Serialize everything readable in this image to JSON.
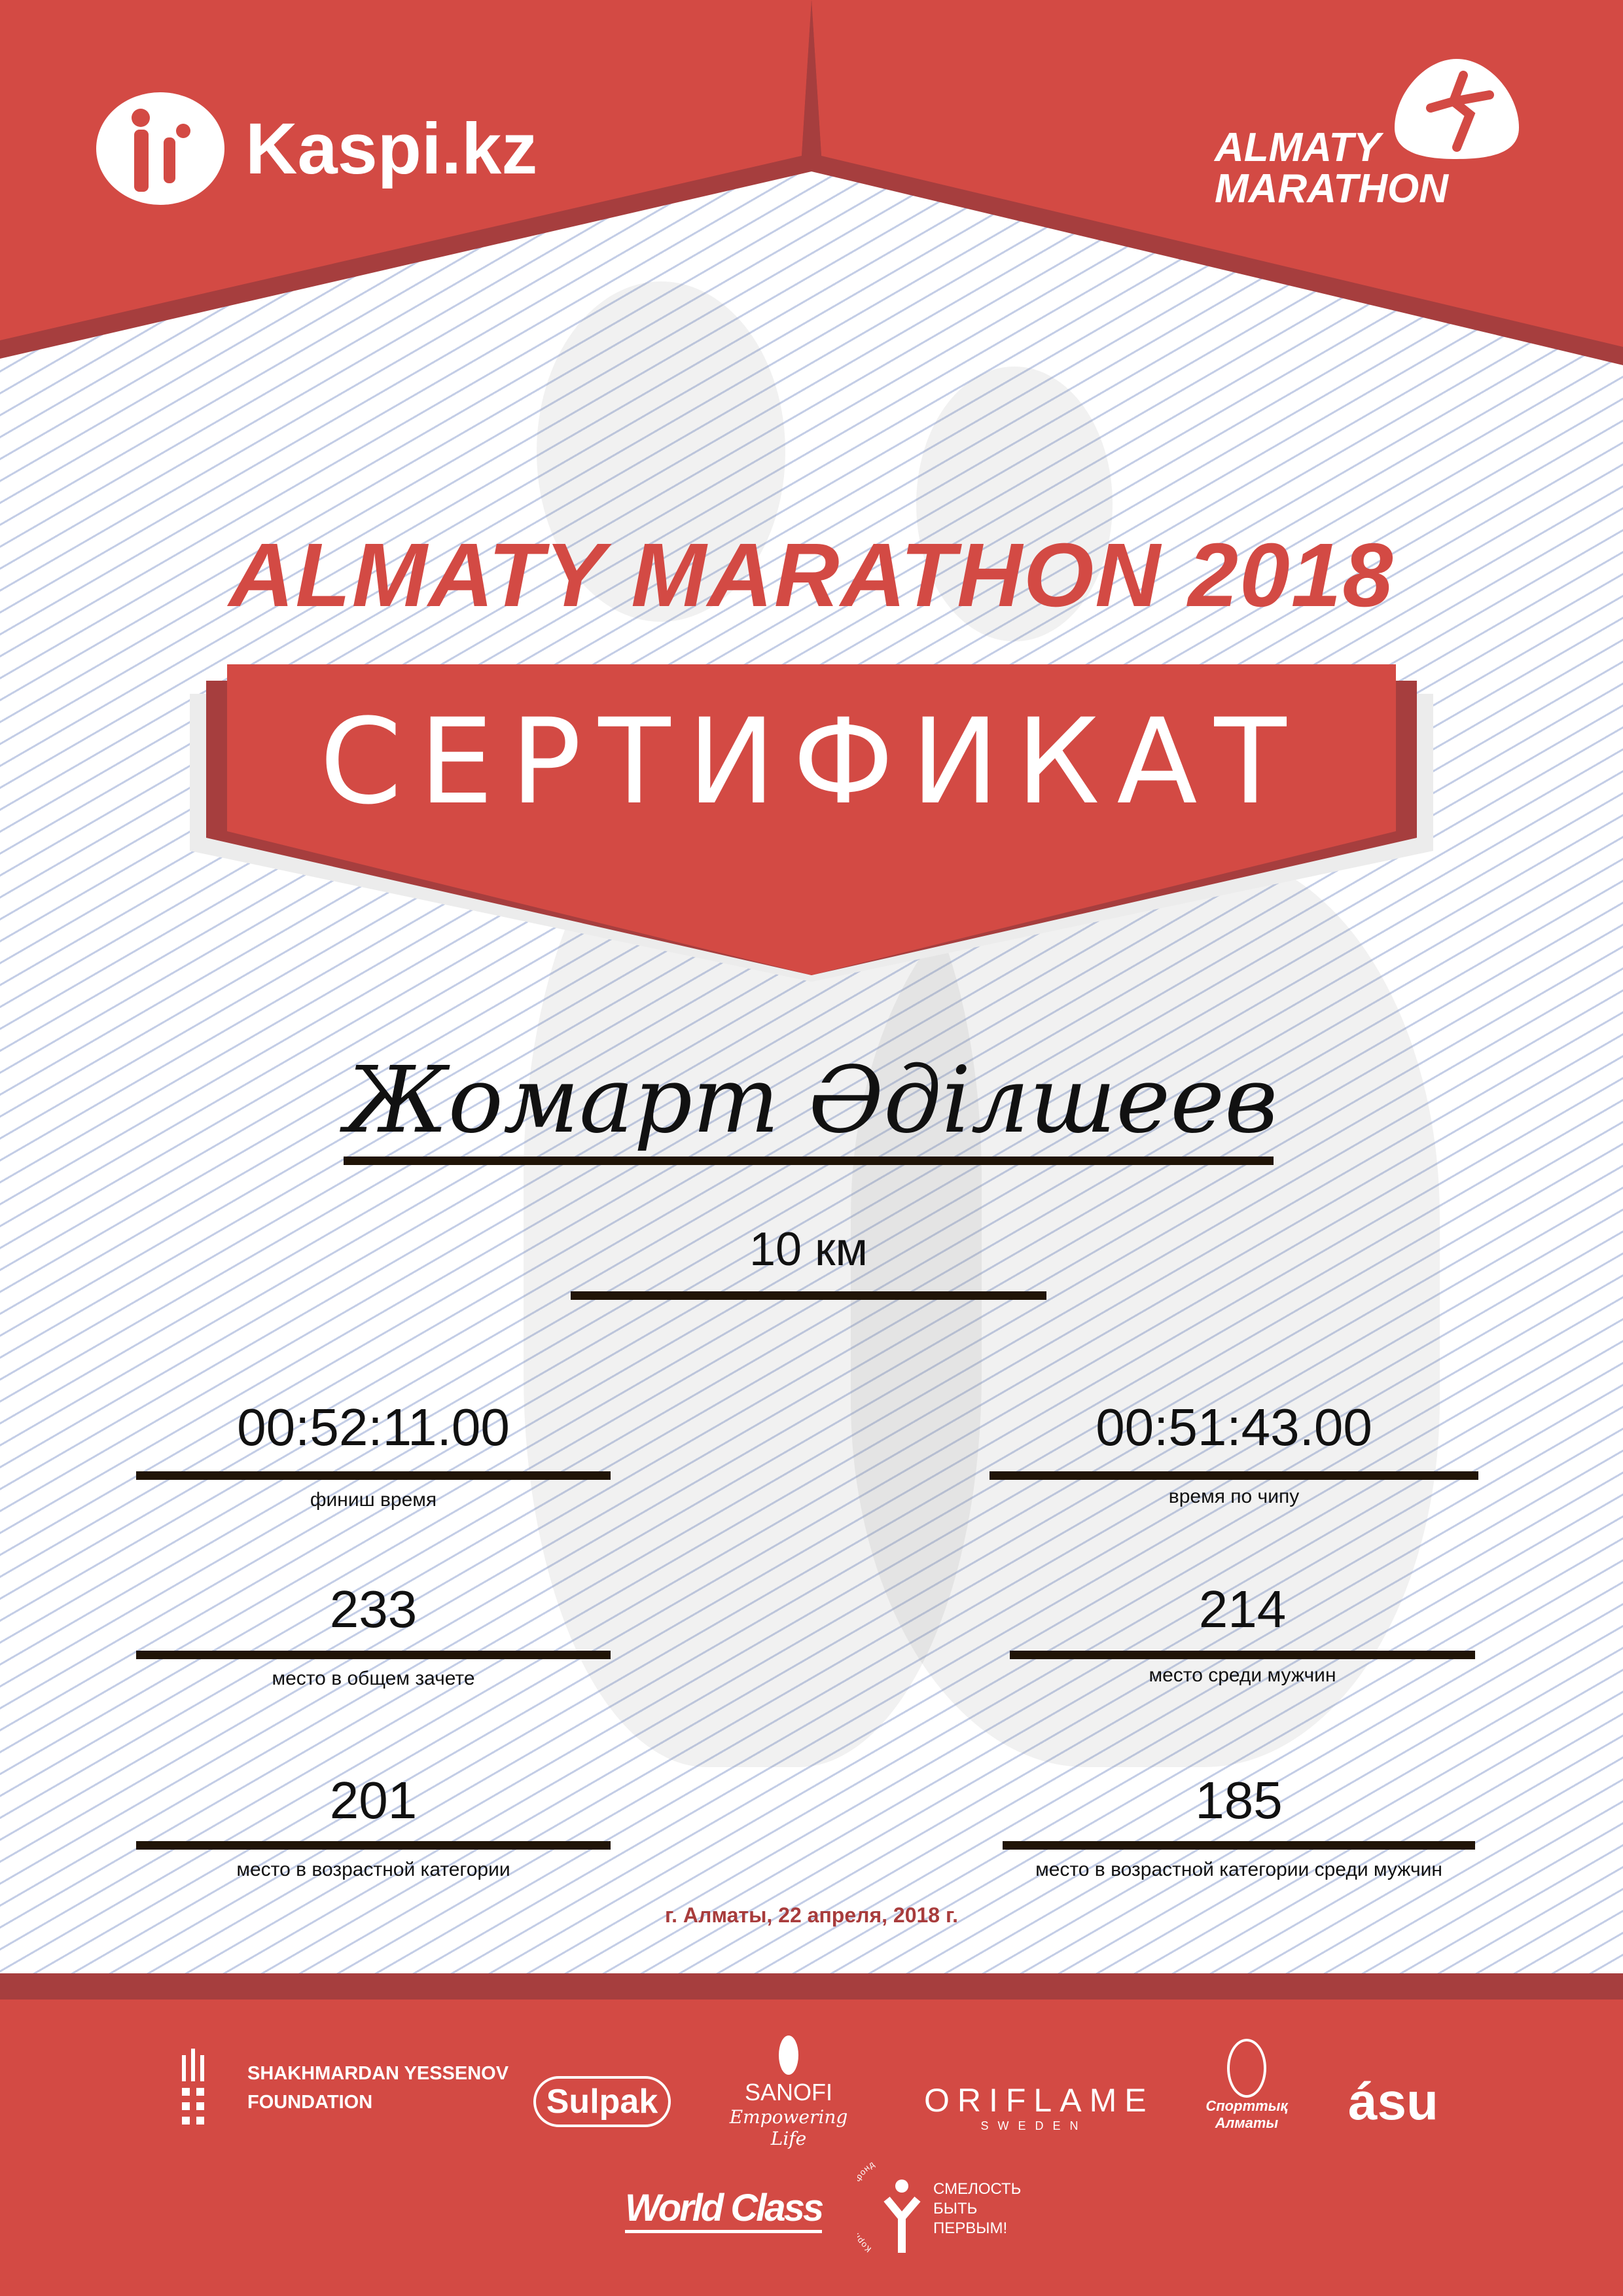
{
  "colors": {
    "brand_red": "#d34a44",
    "dark_red": "#a63e3e",
    "line": "#201407"
  },
  "header": {
    "sponsor_logo": "Kaspi.kz",
    "event_logo": {
      "line1": "ALMATY",
      "line2": "MARATHON"
    }
  },
  "title": "ALMATY MARATHON 2018",
  "banner": "СЕРТИФИКАТ",
  "participant": {
    "name": "Жомарт Әділшеев",
    "distance": "10 км"
  },
  "results": [
    {
      "value": "00:52:11.00",
      "label": "финиш время"
    },
    {
      "value": "00:51:43.00",
      "label": "время по чипу"
    },
    {
      "value": "233",
      "label": "место в общем зачете"
    },
    {
      "value": "214",
      "label": "место среди мужчин"
    },
    {
      "value": "201",
      "label": "место в возрастной категории"
    },
    {
      "value": "185",
      "label": "место в возрастной категории среди мужчин"
    }
  ],
  "date": "г. Алматы, 22 апреля, 2018 г.",
  "partners": {
    "yessenov": {
      "line1": "SHAKHMARDAN YESSENOV",
      "line2": "FOUNDATION"
    },
    "sulpak": "Sulpak",
    "sanofi": {
      "name": "SANOFI",
      "tagline": "Empowering Life"
    },
    "oriflame": {
      "name": "ORIFLAME",
      "sub": "SWEDEN"
    },
    "sport_almaty": {
      "line1": "Спорттық",
      "line2": "Алматы"
    },
    "asu": "ásu",
    "worldclass": "World Class",
    "fund": {
      "arc": "Корпоративный фонд",
      "line1": "СМЕЛОСТЬ",
      "line2": "БЫТЬ",
      "line3": "ПЕРВЫМ!"
    }
  }
}
